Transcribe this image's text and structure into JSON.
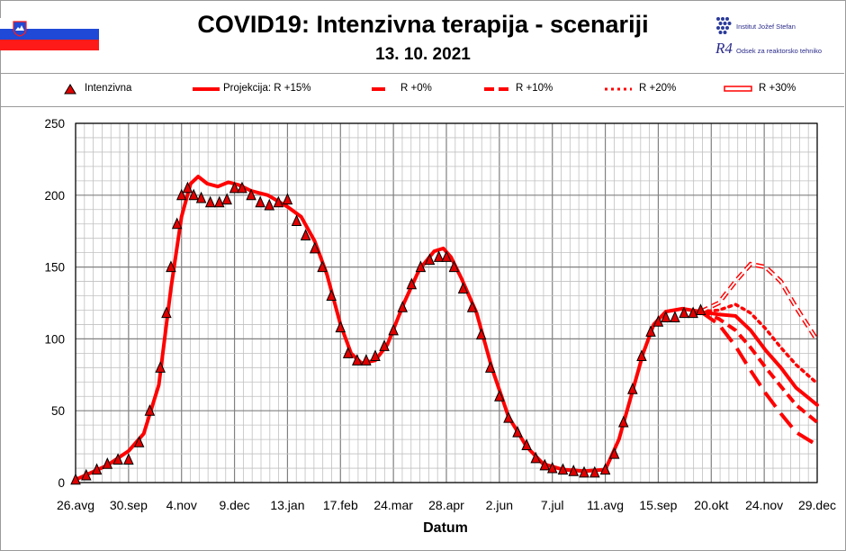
{
  "header": {
    "title": "COVID19: Intenzivna terapija - scenariji",
    "date": "13. 10. 2021",
    "institute": "Institut Jožef Stefan",
    "department_mark": "R4",
    "department": "Odsek za reaktorsko tehniko"
  },
  "colors": {
    "series": "#ff0000",
    "marker": "#e00000",
    "marker_edge": "#000000",
    "grid_major": "#808080",
    "grid_minor": "#c0c0c0"
  },
  "chart_data": {
    "type": "line",
    "title": "COVID19: Intenzivna terapija - scenariji",
    "xlabel": "Datum",
    "ylabel": "",
    "ylim": [
      0,
      250
    ],
    "yticks": [
      0,
      50,
      100,
      150,
      200,
      250
    ],
    "xtick_labels": [
      "26.avg",
      "30.sep",
      "4.nov",
      "9.dec",
      "13.jan",
      "17.feb",
      "24.mar",
      "28.apr",
      "2.jun",
      "7.jul",
      "11.avg",
      "15.sep",
      "20.okt",
      "24.nov",
      "29.dec"
    ],
    "xlim": [
      "2020-08-26",
      "2021-12-29"
    ],
    "grid": true,
    "legend_position": "top",
    "legend": [
      {
        "label": "Intenzivna",
        "style": "triangle-marker"
      },
      {
        "label": "Projekcija: R +15%",
        "style": "solid"
      },
      {
        "label": "R +0%",
        "style": "long-dash"
      },
      {
        "label": "R +10%",
        "style": "dash"
      },
      {
        "label": "R +20%",
        "style": "dot"
      },
      {
        "label": "R +30%",
        "style": "double-line"
      }
    ],
    "observed": {
      "name": "Intenzivna",
      "points": [
        [
          "2020-08-26",
          2
        ],
        [
          "2020-09-02",
          5
        ],
        [
          "2020-09-09",
          9
        ],
        [
          "2020-09-16",
          13
        ],
        [
          "2020-09-23",
          16
        ],
        [
          "2020-09-30",
          16
        ],
        [
          "2020-10-07",
          28
        ],
        [
          "2020-10-14",
          50
        ],
        [
          "2020-10-21",
          80
        ],
        [
          "2020-10-25",
          118
        ],
        [
          "2020-10-28",
          150
        ],
        [
          "2020-11-01",
          180
        ],
        [
          "2020-11-04",
          200
        ],
        [
          "2020-11-08",
          205
        ],
        [
          "2020-11-12",
          200
        ],
        [
          "2020-11-17",
          198
        ],
        [
          "2020-11-23",
          195
        ],
        [
          "2020-11-29",
          195
        ],
        [
          "2020-12-04",
          197
        ],
        [
          "2020-12-09",
          205
        ],
        [
          "2020-12-14",
          205
        ],
        [
          "2020-12-20",
          200
        ],
        [
          "2020-12-26",
          195
        ],
        [
          "2021-01-01",
          193
        ],
        [
          "2021-01-07",
          195
        ],
        [
          "2021-01-13",
          197
        ],
        [
          "2021-01-19",
          182
        ],
        [
          "2021-01-25",
          172
        ],
        [
          "2021-01-31",
          163
        ],
        [
          "2021-02-05",
          150
        ],
        [
          "2021-02-11",
          130
        ],
        [
          "2021-02-17",
          108
        ],
        [
          "2021-02-22",
          90
        ],
        [
          "2021-02-28",
          85
        ],
        [
          "2021-03-06",
          85
        ],
        [
          "2021-03-12",
          88
        ],
        [
          "2021-03-18",
          95
        ],
        [
          "2021-03-24",
          106
        ],
        [
          "2021-03-30",
          122
        ],
        [
          "2021-04-05",
          138
        ],
        [
          "2021-04-11",
          150
        ],
        [
          "2021-04-17",
          155
        ],
        [
          "2021-04-23",
          157
        ],
        [
          "2021-04-28",
          157
        ],
        [
          "2021-05-03",
          150
        ],
        [
          "2021-05-09",
          135
        ],
        [
          "2021-05-15",
          122
        ],
        [
          "2021-05-21",
          103
        ],
        [
          "2021-05-27",
          80
        ],
        [
          "2021-06-02",
          60
        ],
        [
          "2021-06-08",
          45
        ],
        [
          "2021-06-14",
          35
        ],
        [
          "2021-06-20",
          26
        ],
        [
          "2021-06-26",
          17
        ],
        [
          "2021-07-02",
          12
        ],
        [
          "2021-07-07",
          10
        ],
        [
          "2021-07-14",
          9
        ],
        [
          "2021-07-21",
          8
        ],
        [
          "2021-07-28",
          7
        ],
        [
          "2021-08-04",
          7
        ],
        [
          "2021-08-11",
          9
        ],
        [
          "2021-08-17",
          20
        ],
        [
          "2021-08-23",
          42
        ],
        [
          "2021-08-29",
          65
        ],
        [
          "2021-09-04",
          88
        ],
        [
          "2021-09-10",
          105
        ],
        [
          "2021-09-15",
          112
        ],
        [
          "2021-09-20",
          115
        ],
        [
          "2021-09-26",
          115
        ],
        [
          "2021-10-02",
          118
        ],
        [
          "2021-10-08",
          118
        ],
        [
          "2021-10-13",
          120
        ]
      ]
    },
    "fit": {
      "name": "Projekcija: R +15%",
      "points": [
        [
          "2020-08-26",
          2
        ],
        [
          "2020-09-16",
          12
        ],
        [
          "2020-09-30",
          22
        ],
        [
          "2020-10-10",
          34
        ],
        [
          "2020-10-20",
          68
        ],
        [
          "2020-10-28",
          135
        ],
        [
          "2020-11-04",
          185
        ],
        [
          "2020-11-10",
          208
        ],
        [
          "2020-11-15",
          213
        ],
        [
          "2020-11-21",
          208
        ],
        [
          "2020-11-28",
          206
        ],
        [
          "2020-12-05",
          209
        ],
        [
          "2020-12-12",
          207
        ],
        [
          "2020-12-20",
          203
        ],
        [
          "2020-12-31",
          200
        ],
        [
          "2021-01-13",
          192
        ],
        [
          "2021-01-22",
          185
        ],
        [
          "2021-01-31",
          168
        ],
        [
          "2021-02-08",
          145
        ],
        [
          "2021-02-17",
          110
        ],
        [
          "2021-02-24",
          90
        ],
        [
          "2021-03-03",
          83
        ],
        [
          "2021-03-12",
          85
        ],
        [
          "2021-03-20",
          96
        ],
        [
          "2021-03-31",
          125
        ],
        [
          "2021-04-10",
          148
        ],
        [
          "2021-04-20",
          161
        ],
        [
          "2021-04-26",
          163
        ],
        [
          "2021-05-01",
          157
        ],
        [
          "2021-05-08",
          142
        ],
        [
          "2021-05-18",
          118
        ],
        [
          "2021-05-28",
          80
        ],
        [
          "2021-06-08",
          46
        ],
        [
          "2021-06-20",
          25
        ],
        [
          "2021-07-01",
          13
        ],
        [
          "2021-07-14",
          9
        ],
        [
          "2021-07-28",
          8
        ],
        [
          "2021-08-11",
          9
        ],
        [
          "2021-08-20",
          30
        ],
        [
          "2021-08-28",
          60
        ],
        [
          "2021-09-05",
          90
        ],
        [
          "2021-09-12",
          110
        ],
        [
          "2021-09-20",
          119
        ],
        [
          "2021-10-01",
          121
        ],
        [
          "2021-10-13",
          119
        ]
      ]
    },
    "scenarios": [
      {
        "name": "R +15%",
        "style": "solid",
        "points": [
          [
            "2021-10-13",
            119
          ],
          [
            "2021-10-25",
            117
          ],
          [
            "2021-11-05",
            116
          ],
          [
            "2021-11-15",
            106
          ],
          [
            "2021-11-25",
            92
          ],
          [
            "2021-12-05",
            80
          ],
          [
            "2021-12-15",
            66
          ],
          [
            "2021-12-29",
            54
          ]
        ]
      },
      {
        "name": "R +0%",
        "style": "long-dash",
        "points": [
          [
            "2021-10-13",
            119
          ],
          [
            "2021-10-25",
            110
          ],
          [
            "2021-11-05",
            95
          ],
          [
            "2021-11-15",
            78
          ],
          [
            "2021-11-25",
            62
          ],
          [
            "2021-12-05",
            48
          ],
          [
            "2021-12-15",
            35
          ],
          [
            "2021-12-29",
            26
          ]
        ]
      },
      {
        "name": "R +10%",
        "style": "dash",
        "points": [
          [
            "2021-10-13",
            119
          ],
          [
            "2021-10-25",
            114
          ],
          [
            "2021-11-05",
            106
          ],
          [
            "2021-11-15",
            94
          ],
          [
            "2021-11-25",
            80
          ],
          [
            "2021-12-05",
            67
          ],
          [
            "2021-12-15",
            54
          ],
          [
            "2021-12-29",
            42
          ]
        ]
      },
      {
        "name": "R +20%",
        "style": "dot",
        "points": [
          [
            "2021-10-13",
            119
          ],
          [
            "2021-10-25",
            120
          ],
          [
            "2021-11-05",
            124
          ],
          [
            "2021-11-15",
            118
          ],
          [
            "2021-11-25",
            107
          ],
          [
            "2021-12-05",
            94
          ],
          [
            "2021-12-15",
            82
          ],
          [
            "2021-12-29",
            69
          ]
        ]
      },
      {
        "name": "R +30%",
        "style": "double-line",
        "points": [
          [
            "2021-10-13",
            119
          ],
          [
            "2021-10-25",
            125
          ],
          [
            "2021-11-05",
            140
          ],
          [
            "2021-11-15",
            152
          ],
          [
            "2021-11-25",
            150
          ],
          [
            "2021-12-05",
            140
          ],
          [
            "2021-12-15",
            122
          ],
          [
            "2021-12-29",
            99
          ]
        ]
      }
    ]
  }
}
